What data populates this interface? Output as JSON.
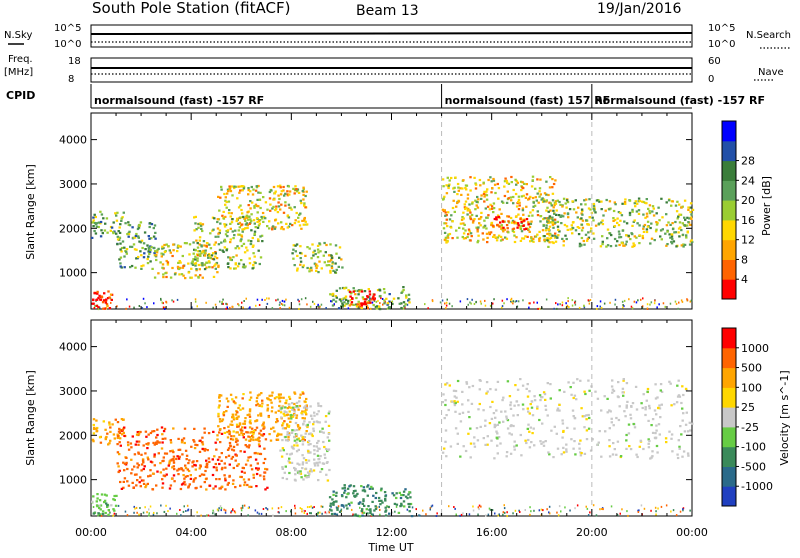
{
  "header": {
    "station": "South Pole Station (fitACF)",
    "beam": "Beam 13",
    "date": "19/Jan/2016"
  },
  "strips": {
    "nsky_label": "N.Sky",
    "nsky_ticks": [
      "10^5",
      "10^0"
    ],
    "nsearch_label": "N.Search",
    "nsearch_ticks": [
      "10^5",
      "10^0"
    ],
    "freq_label_top": "Freq.",
    "freq_label_unit": "[MHz]",
    "freq_ticks": [
      "18",
      "8"
    ],
    "nave_label": "Nave",
    "nave_ticks": [
      "60",
      "0"
    ],
    "cpid_label": "CPID",
    "cpid_segments": [
      {
        "text": "normalsound (fast) -157 RF",
        "start_hour": 0
      },
      {
        "text": "normalsound (fast) 157 RF",
        "start_hour": 14
      },
      {
        "text": "normalsound (fast) -157 RF",
        "start_hour": 20
      }
    ]
  },
  "chart_data": [
    {
      "type": "heatmap",
      "name": "power",
      "ylabel": "Slant Range [km]",
      "y_ticks": [
        1000,
        2000,
        3000,
        4000
      ],
      "xlim_hours": [
        0,
        24
      ],
      "ylim_km": [
        180,
        4600
      ],
      "colorbar": {
        "label": "Power [dB]",
        "ticks": [
          "4",
          "8",
          "12",
          "16",
          "20",
          "24",
          "28"
        ],
        "colors": [
          "#0000ff",
          "#2250a8",
          "#3a7d3a",
          "#5aa05a",
          "#9acd32",
          "#ffd700",
          "#ffa500",
          "#ff6400",
          "#ff0000"
        ]
      },
      "echo_regions": [
        {
          "x0": 0.0,
          "x1": 1.3,
          "y0": 1800,
          "y1": 2400,
          "level": 3
        },
        {
          "x0": 1.0,
          "x1": 2.6,
          "y0": 1100,
          "y1": 2200,
          "level": 3
        },
        {
          "x0": 2.5,
          "x1": 5.0,
          "y0": 900,
          "y1": 1700,
          "level": 5
        },
        {
          "x0": 4.0,
          "x1": 6.8,
          "y0": 1100,
          "y1": 2300,
          "level": 4
        },
        {
          "x0": 5.0,
          "x1": 8.6,
          "y0": 2000,
          "y1": 3000,
          "level": 5
        },
        {
          "x0": 8.0,
          "x1": 10.0,
          "y0": 1000,
          "y1": 1700,
          "level": 4
        },
        {
          "x0": 9.5,
          "x1": 12.8,
          "y0": 200,
          "y1": 700,
          "level": 3
        },
        {
          "x0": 10.2,
          "x1": 11.3,
          "y0": 220,
          "y1": 600,
          "level": 8
        },
        {
          "x0": 0.0,
          "x1": 0.8,
          "y0": 200,
          "y1": 600,
          "level": 8
        },
        {
          "x0": 14.0,
          "x1": 18.5,
          "y0": 1700,
          "y1": 3200,
          "level": 5
        },
        {
          "x0": 16.0,
          "x1": 17.5,
          "y0": 2000,
          "y1": 2300,
          "level": 7
        },
        {
          "x0": 18.0,
          "x1": 24.0,
          "y0": 1600,
          "y1": 2700,
          "level": 4
        }
      ]
    },
    {
      "type": "heatmap",
      "name": "velocity",
      "ylabel": "Slant Range [km]",
      "xlabel": "Time UT",
      "x_ticks": [
        "00:00",
        "04:00",
        "08:00",
        "12:00",
        "16:00",
        "20:00",
        "00:00"
      ],
      "y_ticks": [
        1000,
        2000,
        3000,
        4000
      ],
      "xlim_hours": [
        0,
        24
      ],
      "ylim_km": [
        180,
        4600
      ],
      "colorbar": {
        "label": "Velocity [m s^-1]",
        "ticks": [
          "1000",
          "500",
          "100",
          "25",
          "-25",
          "-100",
          "-500",
          "-1000"
        ],
        "colors": [
          "#2040c0",
          "#2a6a8a",
          "#3a8a5a",
          "#66cc44",
          "#c8c8c8",
          "#ffd700",
          "#ffa500",
          "#ff6400",
          "#ff0000"
        ]
      },
      "echo_regions": [
        {
          "x0": 0.0,
          "x1": 1.3,
          "y0": 1800,
          "y1": 2400,
          "color_index": 6
        },
        {
          "x0": 1.0,
          "x1": 7.0,
          "y0": 800,
          "y1": 2200,
          "color_index": 7
        },
        {
          "x0": 5.0,
          "x1": 8.6,
          "y0": 1900,
          "y1": 3000,
          "color_index": 6
        },
        {
          "x0": 7.5,
          "x1": 9.5,
          "y0": 1000,
          "y1": 2800,
          "color_index": 4
        },
        {
          "x0": 9.5,
          "x1": 12.8,
          "y0": 200,
          "y1": 900,
          "color_index": 2
        },
        {
          "x0": 14.0,
          "x1": 24.0,
          "y0": 1500,
          "y1": 3300,
          "color_index": 4
        },
        {
          "x0": 0.0,
          "x1": 1.0,
          "y0": 200,
          "y1": 700,
          "color_index": 3
        }
      ]
    }
  ]
}
